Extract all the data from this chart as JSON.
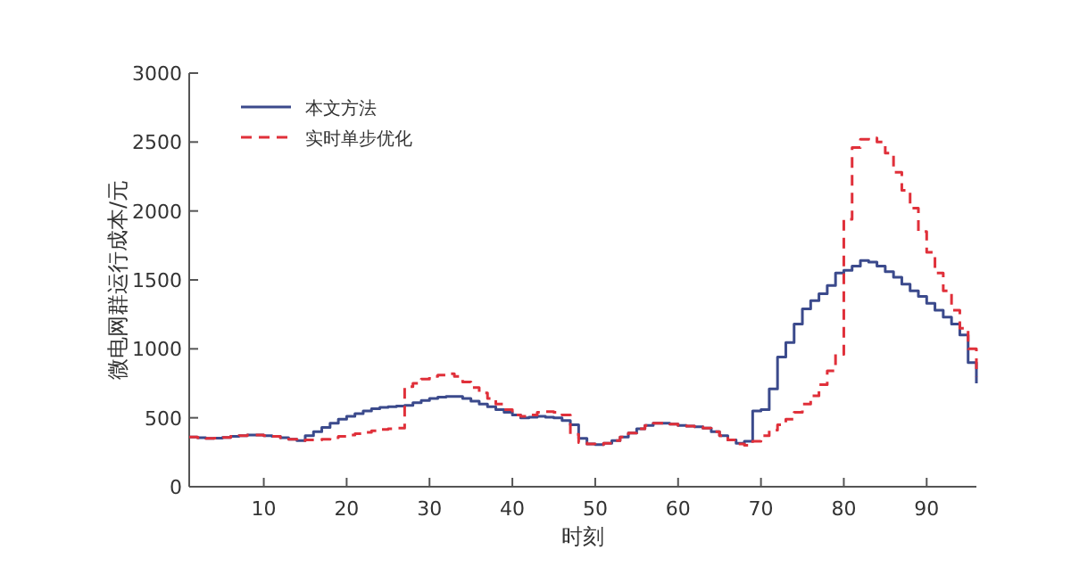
{
  "chart_data": {
    "type": "step",
    "xlabel": "时刻",
    "ylabel": "微电网群运行成本/元",
    "x": [
      1,
      2,
      3,
      4,
      5,
      6,
      7,
      8,
      9,
      10,
      11,
      12,
      13,
      14,
      15,
      16,
      17,
      18,
      19,
      20,
      21,
      22,
      23,
      24,
      25,
      26,
      27,
      28,
      29,
      30,
      31,
      32,
      33,
      34,
      35,
      36,
      37,
      38,
      39,
      40,
      41,
      42,
      43,
      44,
      45,
      46,
      47,
      48,
      49,
      50,
      51,
      52,
      53,
      54,
      55,
      56,
      57,
      58,
      59,
      60,
      61,
      62,
      63,
      64,
      65,
      66,
      67,
      68,
      69,
      70,
      71,
      72,
      73,
      74,
      75,
      76,
      77,
      78,
      79,
      80,
      81,
      82,
      83,
      84,
      85,
      86,
      87,
      88,
      89,
      90,
      91,
      92,
      93,
      94,
      95,
      96
    ],
    "series": [
      {
        "name": "本文方法",
        "color": "#3b4a8c",
        "line_style": "solid",
        "values": [
          360,
          355,
          350,
          352,
          358,
          365,
          370,
          375,
          375,
          370,
          365,
          355,
          345,
          335,
          370,
          400,
          430,
          460,
          490,
          510,
          530,
          550,
          565,
          575,
          580,
          585,
          590,
          610,
          625,
          640,
          650,
          655,
          655,
          640,
          620,
          600,
          580,
          560,
          540,
          520,
          500,
          505,
          510,
          505,
          500,
          480,
          450,
          350,
          310,
          305,
          315,
          335,
          360,
          390,
          420,
          445,
          460,
          460,
          455,
          445,
          440,
          435,
          425,
          400,
          370,
          340,
          315,
          330,
          550,
          560,
          710,
          940,
          1045,
          1180,
          1290,
          1350,
          1400,
          1460,
          1550,
          1570,
          1600,
          1640,
          1630,
          1600,
          1560,
          1520,
          1470,
          1420,
          1380,
          1330,
          1280,
          1230,
          1180,
          1100,
          900,
          750
        ]
      },
      {
        "name": "实时单步优化",
        "color": "#e0303a",
        "line_style": "dashed",
        "values": [
          360,
          355,
          350,
          352,
          358,
          365,
          370,
          375,
          375,
          370,
          365,
          355,
          345,
          335,
          340,
          340,
          345,
          355,
          365,
          375,
          385,
          395,
          405,
          415,
          420,
          425,
          725,
          750,
          780,
          800,
          810,
          820,
          800,
          760,
          720,
          680,
          640,
          600,
          560,
          520,
          510,
          520,
          540,
          545,
          540,
          520,
          380,
          320,
          310,
          305,
          315,
          335,
          360,
          390,
          420,
          445,
          460,
          460,
          455,
          445,
          440,
          435,
          425,
          400,
          370,
          340,
          310,
          300,
          330,
          370,
          410,
          450,
          490,
          540,
          600,
          660,
          740,
          840,
          960,
          1940,
          2460,
          2520,
          2530,
          2500,
          2420,
          2280,
          2150,
          2020,
          1850,
          1700,
          1550,
          1420,
          1280,
          1150,
          1000,
          800
        ]
      }
    ],
    "xlim": [
      1,
      96
    ],
    "xticks": [
      10,
      20,
      30,
      40,
      50,
      60,
      70,
      80,
      90
    ],
    "ylim": [
      0,
      3000
    ],
    "yticks": [
      0,
      500,
      1000,
      1500,
      2000,
      2500,
      3000
    ],
    "grid": false,
    "legend": "top left"
  }
}
